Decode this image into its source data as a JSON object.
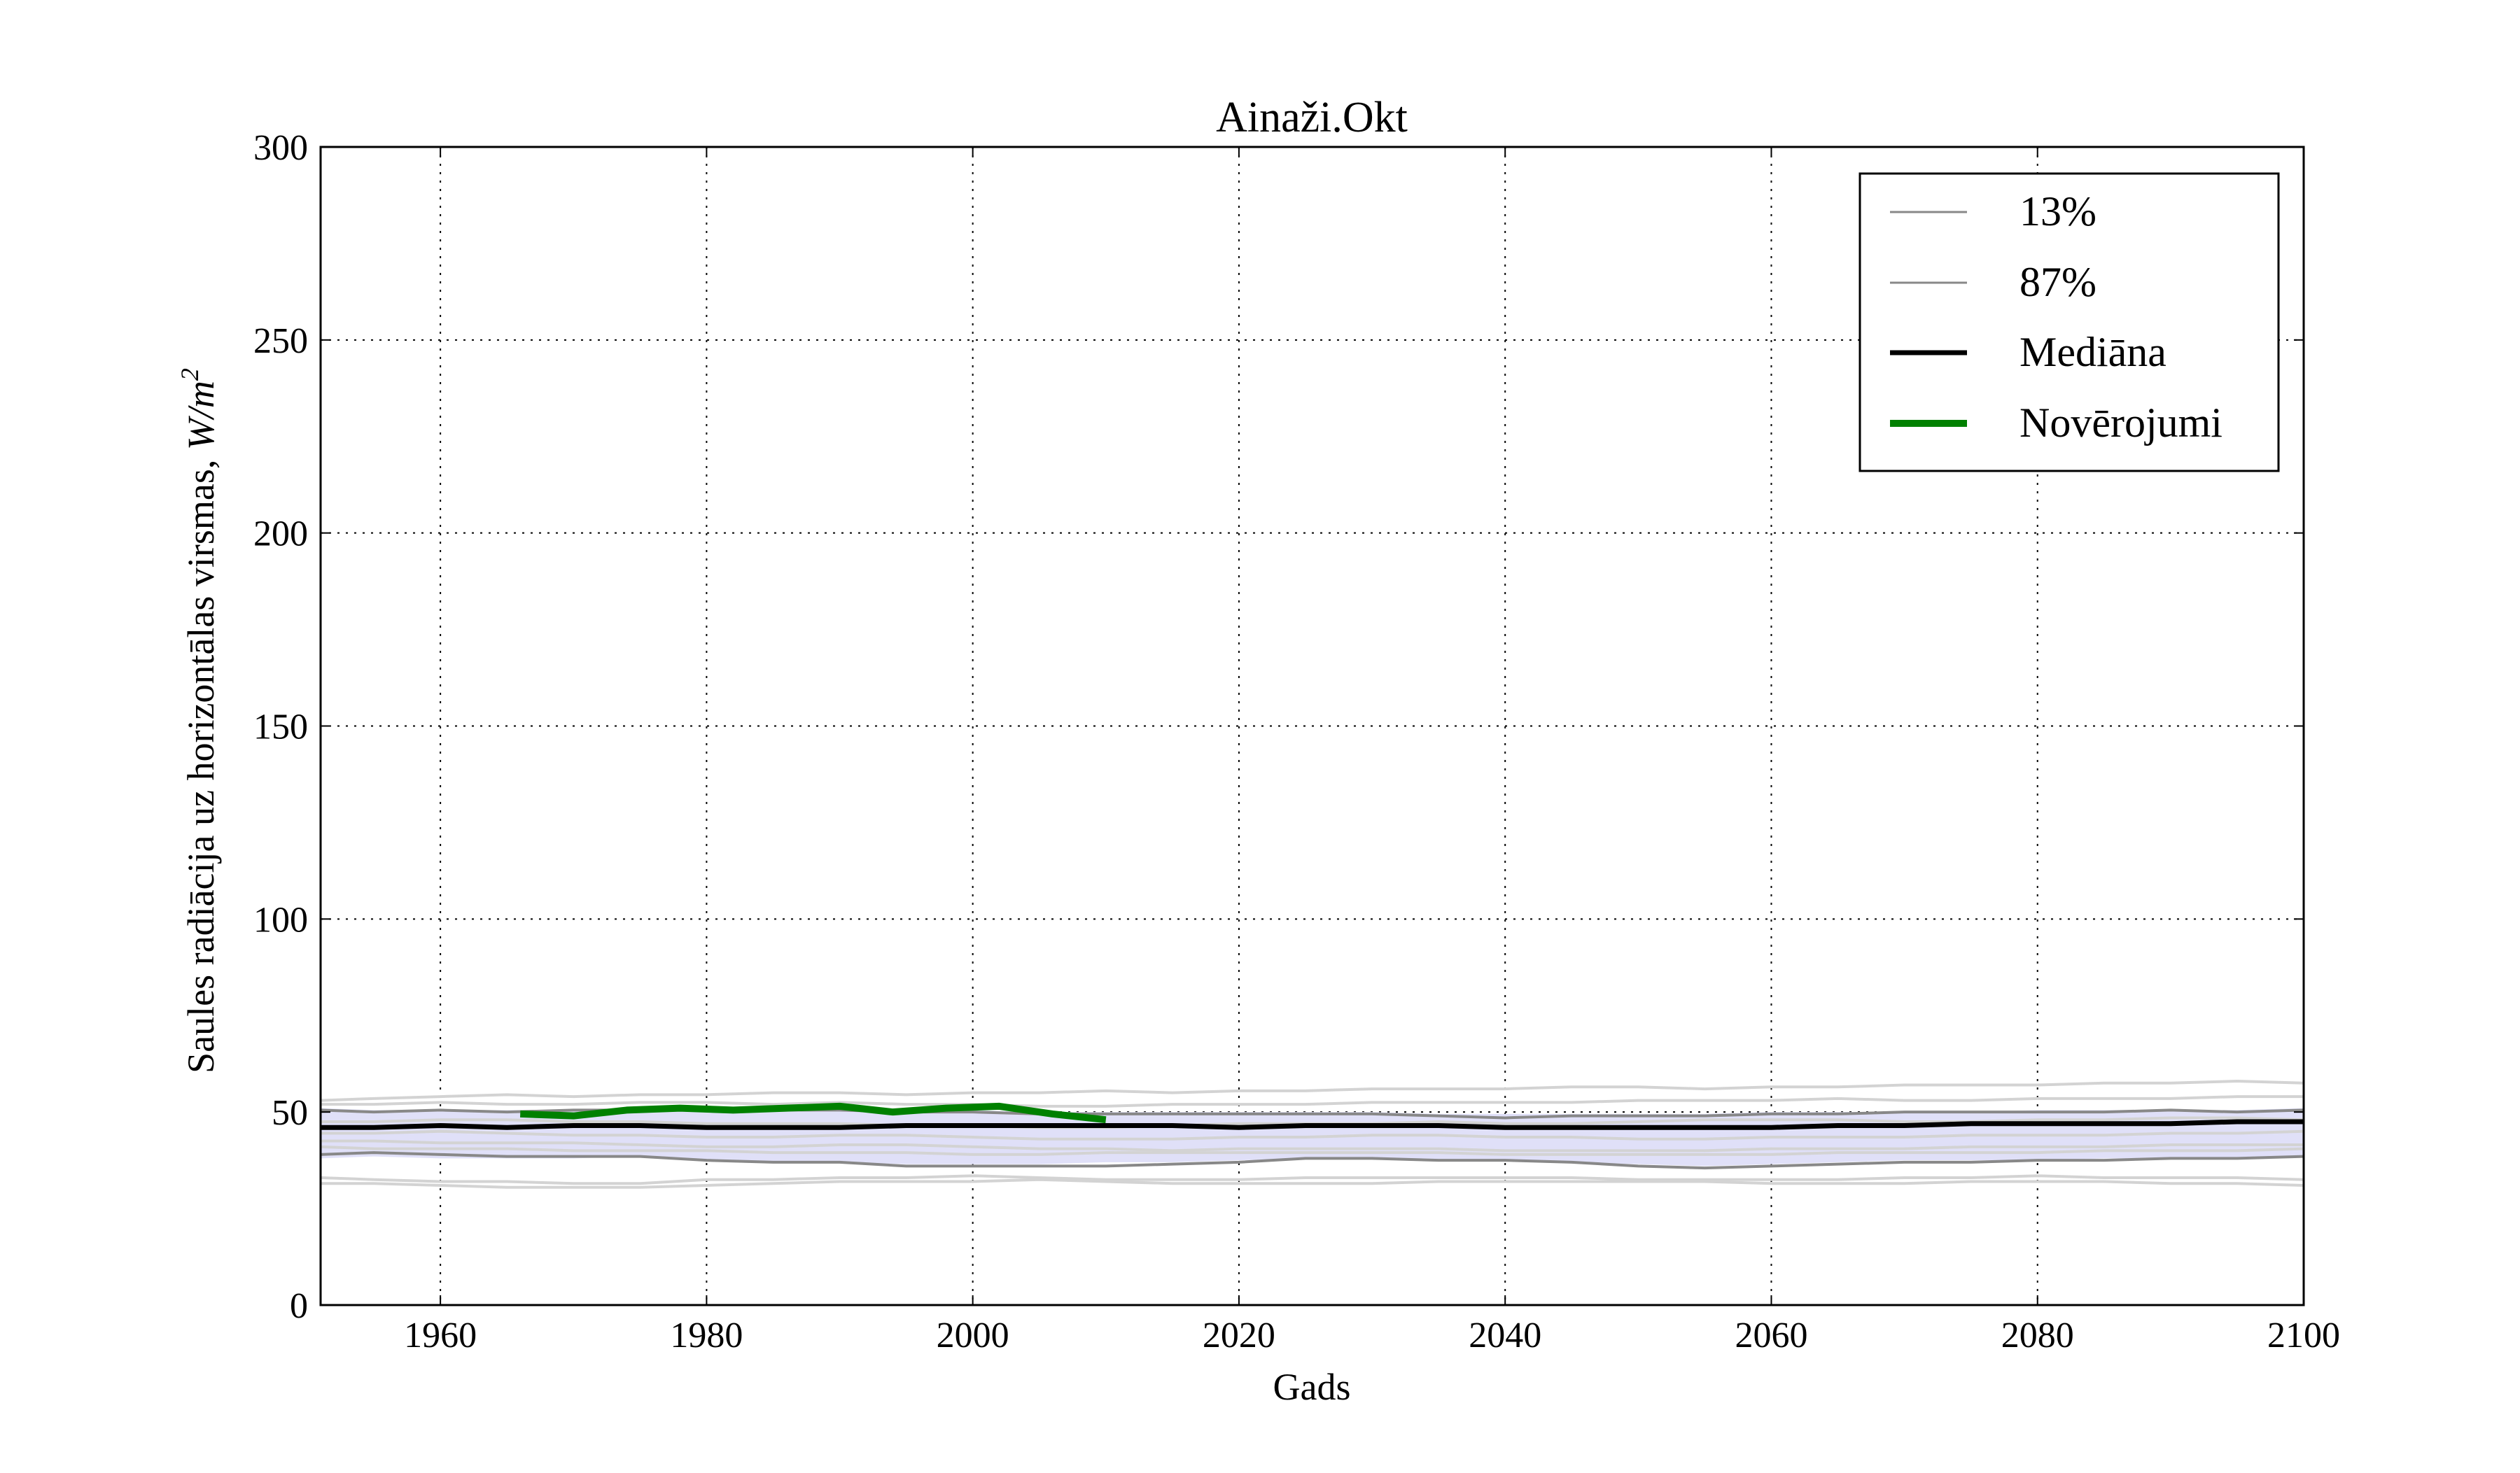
{
  "chart_data": {
    "type": "line",
    "title": "Ainaži.Okt",
    "xlabel": "Gads",
    "ylabel_text": "Saules radiācija uz horizontālas virsmas, ",
    "ylabel_unit": "W/m",
    "ylabel_unit_exp": "2",
    "xlim": [
      1951,
      2100
    ],
    "ylim": [
      0,
      300
    ],
    "xticks": [
      1960,
      1980,
      2000,
      2020,
      2040,
      2060,
      2080,
      2100
    ],
    "yticks": [
      0,
      50,
      100,
      150,
      200,
      250,
      300
    ],
    "grid": true,
    "legend_position": "top-right",
    "legend": [
      "13%",
      "87%",
      "Mediāna",
      "Novērojumi"
    ],
    "x": [
      1951,
      1955,
      1960,
      1965,
      1970,
      1975,
      1980,
      1985,
      1990,
      1995,
      2000,
      2005,
      2010,
      2015,
      2020,
      2025,
      2030,
      2035,
      2040,
      2045,
      2050,
      2055,
      2060,
      2065,
      2070,
      2075,
      2080,
      2085,
      2090,
      2095,
      2100
    ],
    "band": {
      "lower": [
        38,
        38.5,
        38,
        38,
        38,
        38.5,
        37.5,
        37,
        37,
        36.5,
        36.5,
        36.5,
        37,
        37,
        37.5,
        38,
        38,
        37.5,
        37.5,
        37,
        36.5,
        36,
        36.5,
        37,
        37.5,
        37.5,
        37.5,
        38,
        38,
        38,
        38.5
      ],
      "upper": [
        51,
        50.5,
        50.5,
        50.5,
        50.5,
        51,
        51,
        51,
        51,
        50.5,
        50.5,
        50,
        50,
        50,
        50,
        50,
        50,
        49.5,
        49.5,
        49.5,
        49.5,
        49.5,
        50,
        50,
        50,
        50,
        50.5,
        50.5,
        50.5,
        50.5,
        51
      ],
      "color": "#e0e0f8"
    },
    "series": [
      {
        "name": "13%",
        "color": "#888888",
        "values": [
          39,
          39.5,
          39,
          38.5,
          38.5,
          38.5,
          37.5,
          37,
          37,
          36,
          36,
          36,
          36,
          36.5,
          37,
          38,
          38,
          37.5,
          37.5,
          37,
          36,
          35.5,
          36,
          36.5,
          37,
          37,
          37.5,
          37.5,
          38,
          38,
          38.5
        ]
      },
      {
        "name": "87%",
        "color": "#888888",
        "values": [
          50.5,
          50,
          50.5,
          50,
          50.5,
          50.5,
          50.5,
          50.5,
          50.5,
          50,
          50,
          49.5,
          49.5,
          49.5,
          49.5,
          49.5,
          49.5,
          49,
          48.5,
          49,
          49,
          49,
          49.5,
          49.5,
          50,
          50,
          50,
          50,
          50.5,
          50,
          50.5
        ]
      },
      {
        "name": "Mediāna",
        "color": "#000000",
        "values": [
          46,
          46,
          46.5,
          46,
          46.5,
          46.5,
          46,
          46,
          46,
          46.5,
          46.5,
          46.5,
          46.5,
          46.5,
          46,
          46.5,
          46.5,
          46.5,
          46,
          46,
          46,
          46,
          46,
          46.5,
          46.5,
          47,
          47,
          47,
          47,
          47.5,
          47.5
        ]
      },
      {
        "name": "Novērojumi",
        "color": "#008000",
        "x": [
          1966,
          1970,
          1974,
          1978,
          1982,
          1986,
          1990,
          1994,
          1998,
          2002,
          2006,
          2010
        ],
        "values": [
          49.5,
          49,
          50.5,
          51,
          50.5,
          51,
          51.5,
          50,
          51,
          51.5,
          49.5,
          48
        ]
      }
    ],
    "ensemble": {
      "color": "#d3d3d3",
      "values": [
        [
          53,
          53.5,
          54,
          54.5,
          54,
          54.5,
          54.5,
          55,
          55,
          54.5,
          55,
          55,
          55.5,
          55,
          55.5,
          55.5,
          56,
          56,
          56,
          56.5,
          56.5,
          56,
          56.5,
          56.5,
          57,
          57,
          57,
          57.5,
          57.5,
          58,
          57.5
        ],
        [
          52,
          52,
          52.5,
          52,
          52,
          52.5,
          52.5,
          52,
          52.5,
          52,
          52,
          51.5,
          51.5,
          52,
          52,
          52,
          52.5,
          52.5,
          52.5,
          52.5,
          53,
          53,
          53,
          53.5,
          53,
          53,
          53.5,
          53.5,
          53.5,
          54,
          54
        ],
        [
          47.5,
          47.5,
          48,
          48,
          47.5,
          47.5,
          47,
          47,
          47,
          46.5,
          46.5,
          46,
          46,
          46.5,
          47,
          47,
          47,
          47.5,
          47,
          47,
          47.5,
          48,
          48,
          48,
          47.5,
          47.5,
          48,
          48,
          48.5,
          48.5,
          48
        ],
        [
          44.5,
          44.5,
          45,
          44.5,
          44,
          44,
          43.5,
          43.5,
          44,
          44,
          43.5,
          43,
          43,
          43,
          43.5,
          43.5,
          44,
          44,
          43.5,
          43.5,
          43,
          43,
          43.5,
          43.5,
          43.5,
          44,
          44,
          44,
          44.5,
          44.5,
          45
        ],
        [
          42.5,
          42.5,
          42,
          42,
          42,
          41.5,
          41,
          41,
          41.5,
          41.5,
          41,
          40.5,
          40.5,
          40,
          40.5,
          40.5,
          40.5,
          40.5,
          40,
          40,
          40,
          40,
          40.5,
          40.5,
          40.5,
          41,
          41,
          41,
          41.5,
          41.5,
          41.5
        ],
        [
          41,
          40.5,
          40.5,
          40.5,
          40,
          40,
          40,
          39.5,
          39.5,
          39.5,
          39,
          39,
          39.5,
          39.5,
          39.5,
          39.5,
          39.5,
          39.5,
          39,
          39,
          39,
          39,
          39,
          39.5,
          39.5,
          39.5,
          39.5,
          40,
          40,
          40,
          40.5
        ],
        [
          33,
          32.5,
          32,
          32,
          31.5,
          31.5,
          32.5,
          32.5,
          33,
          33,
          33.5,
          33,
          32.5,
          32.5,
          32.5,
          33,
          33,
          33,
          33,
          33,
          32.5,
          32.5,
          32.5,
          32.5,
          33,
          33,
          33.5,
          33,
          33,
          33,
          32.5
        ],
        [
          31.5,
          31.5,
          31,
          30.5,
          30.5,
          30.5,
          31,
          31.5,
          32,
          32,
          32,
          32.5,
          32,
          31.5,
          31.5,
          31.5,
          31.5,
          32,
          32,
          32,
          32,
          32,
          31.5,
          31.5,
          31.5,
          32,
          32,
          32,
          31.5,
          31.5,
          31
        ]
      ]
    }
  }
}
